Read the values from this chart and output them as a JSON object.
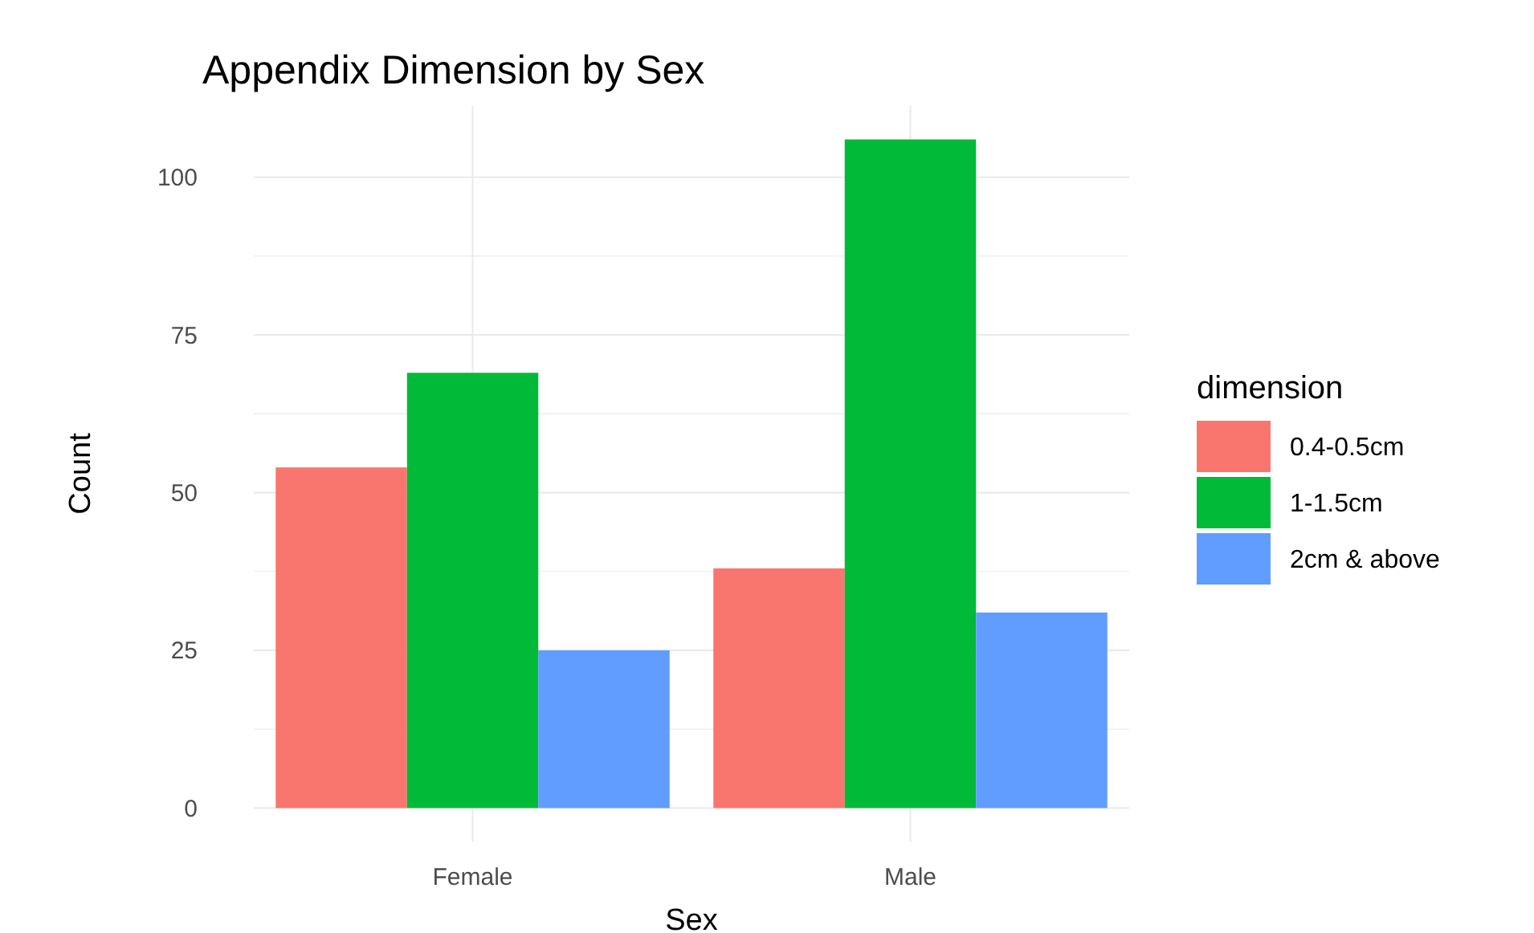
{
  "chart_data": {
    "type": "bar",
    "title": "Appendix Dimension by Sex",
    "xlabel": "Sex",
    "ylabel": "Count",
    "legend_title": "dimension",
    "categories": [
      "Female",
      "Male"
    ],
    "series": [
      {
        "name": "0.4-0.5cm",
        "color": "#f8766d",
        "values": [
          54,
          38
        ]
      },
      {
        "name": "1-1.5cm",
        "color": "#00ba38",
        "values": [
          69,
          106
        ]
      },
      {
        "name": "2cm & above",
        "color": "#619cff",
        "values": [
          25,
          31
        ]
      }
    ],
    "ylim": [
      -5.3,
      111.3
    ],
    "yticks": [
      0,
      {
        "value": 12.5,
        "label": null
      },
      25,
      {
        "value": 37.5,
        "label": null
      },
      50,
      {
        "value": 62.5,
        "label": null
      },
      75,
      {
        "value": 87.5,
        "label": null
      },
      100
    ],
    "grid": true,
    "legend": "right"
  }
}
